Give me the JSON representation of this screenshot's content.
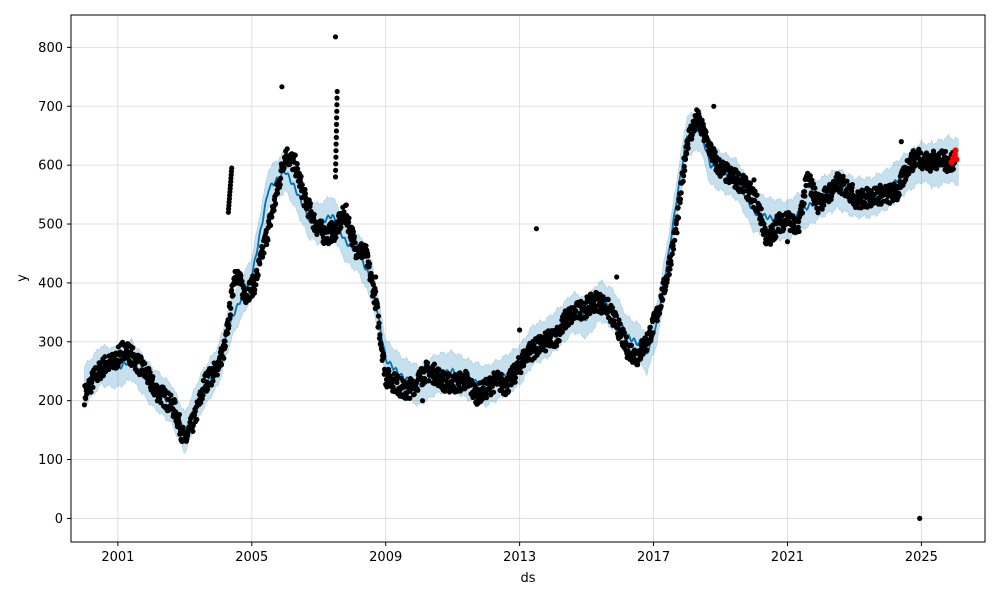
{
  "chart_data": {
    "type": "line",
    "title": "",
    "xlabel": "ds",
    "ylabel": "y",
    "xlim": [
      1999.6,
      2026.9
    ],
    "ylim": [
      -40,
      855
    ],
    "x_ticks": [
      "2001",
      "2005",
      "2009",
      "2013",
      "2017",
      "2021",
      "2025"
    ],
    "y_ticks": [
      "0",
      "100",
      "200",
      "300",
      "400",
      "500",
      "600",
      "700",
      "800"
    ],
    "grid": true,
    "legend": "none",
    "colors": {
      "observed": "#000000",
      "forecast_line": "#0072B2",
      "uncertainty_band": "#0072B2",
      "latest_points": "#ff0000"
    },
    "series": [
      {
        "type": "line",
        "x": [
          2000.0,
          2000.5,
          2001.0,
          2001.4,
          2002.0,
          2002.6,
          2003.0,
          2003.5,
          2004.0,
          2004.4,
          2005.0,
          2005.5,
          2006.0,
          2006.3,
          2006.7,
          2007.0,
          2007.4,
          2007.8,
          2008.2,
          2008.6,
          2009.0,
          2009.5,
          2010.0,
          2010.5,
          2011.0,
          2011.5,
          2012.0,
          2012.5,
          2013.0,
          2013.4,
          2013.8,
          2014.2,
          2014.6,
          2015.0,
          2015.4,
          2015.8,
          2016.2,
          2016.6,
          2016.8,
          2017.1,
          2017.4,
          2017.7,
          2018.0,
          2018.4,
          2018.7,
          2019.0,
          2019.5,
          2020.0,
          2020.5,
          2021.0,
          2021.5,
          2022.0,
          2022.5,
          2023.0,
          2023.5,
          2024.0,
          2024.5,
          2025.0,
          2025.4,
          2025.8,
          2026.1
        ],
        "y": [
          225,
          260,
          255,
          270,
          225,
          195,
          145,
          215,
          260,
          340,
          410,
          560,
          590,
          560,
          510,
          500,
          515,
          470,
          450,
          400,
          270,
          240,
          225,
          245,
          250,
          235,
          225,
          240,
          260,
          295,
          305,
          325,
          350,
          340,
          370,
          355,
          310,
          295,
          280,
          330,
          430,
          545,
          650,
          660,
          600,
          590,
          575,
          520,
          510,
          505,
          525,
          545,
          560,
          545,
          545,
          560,
          585,
          605,
          600,
          610,
          605
        ]
      },
      {
        "type": "scatter",
        "x": [
          2000.0,
          2000.3,
          2000.6,
          2000.9,
          2001.2,
          2001.5,
          2001.8,
          2002.1,
          2002.4,
          2002.7,
          2003.0,
          2003.3,
          2003.6,
          2003.9,
          2004.2,
          2004.5,
          2004.8,
          2005.1,
          2005.4,
          2005.7,
          2006.0,
          2006.3,
          2006.6,
          2006.9,
          2007.2,
          2007.5,
          2007.8,
          2008.1,
          2008.4,
          2008.7,
          2009.0,
          2009.3,
          2009.6,
          2009.9,
          2010.2,
          2010.5,
          2010.8,
          2011.1,
          2011.4,
          2011.7,
          2012.0,
          2012.3,
          2012.6,
          2012.9,
          2013.2,
          2013.5,
          2013.8,
          2014.1,
          2014.4,
          2014.7,
          2015.0,
          2015.3,
          2015.6,
          2015.9,
          2016.2,
          2016.5,
          2016.8,
          2017.1,
          2017.4,
          2017.7,
          2018.0,
          2018.3,
          2018.6,
          2018.9,
          2019.2,
          2019.5,
          2019.8,
          2020.1,
          2020.4,
          2020.7,
          2021.0,
          2021.3,
          2021.6,
          2021.9,
          2022.2,
          2022.5,
          2022.8,
          2023.1,
          2023.4,
          2023.7,
          2024.0,
          2024.3,
          2024.6,
          2024.9,
          2025.2,
          2025.5,
          2025.8,
          2026.0
        ],
        "y": [
          210,
          240,
          260,
          265,
          290,
          270,
          250,
          220,
          205,
          185,
          130,
          170,
          230,
          250,
          290,
          420,
          380,
          400,
          470,
          540,
          620,
          600,
          540,
          500,
          480,
          490,
          520,
          460,
          450,
          370,
          240,
          230,
          215,
          230,
          250,
          245,
          230,
          230,
          235,
          210,
          220,
          235,
          225,
          250,
          280,
          290,
          300,
          310,
          340,
          350,
          360,
          370,
          360,
          330,
          290,
          275,
          300,
          345,
          410,
          500,
          640,
          680,
          640,
          600,
          585,
          575,
          560,
          535,
          470,
          500,
          510,
          490,
          580,
          535,
          550,
          570,
          560,
          540,
          545,
          550,
          550,
          555,
          600,
          615,
          605,
          610,
          605,
          610
        ]
      },
      {
        "type": "scatter",
        "x": [
          2008.7,
          2010.1,
          2013.0,
          2013.6,
          2014.1,
          2015.9,
          2018.8,
          2020.0,
          2021.0,
          2024.4,
          2024.95
        ],
        "y": [
          410,
          200,
          320,
          285,
          300,
          410,
          700,
          575,
          470,
          640,
          0
        ]
      },
      {
        "type": "scatter",
        "x": [
          2025.9,
          2025.95,
          2026.0,
          2026.02,
          2026.05
        ],
        "y": [
          605,
          612,
          618,
          625,
          610
        ]
      }
    ]
  }
}
